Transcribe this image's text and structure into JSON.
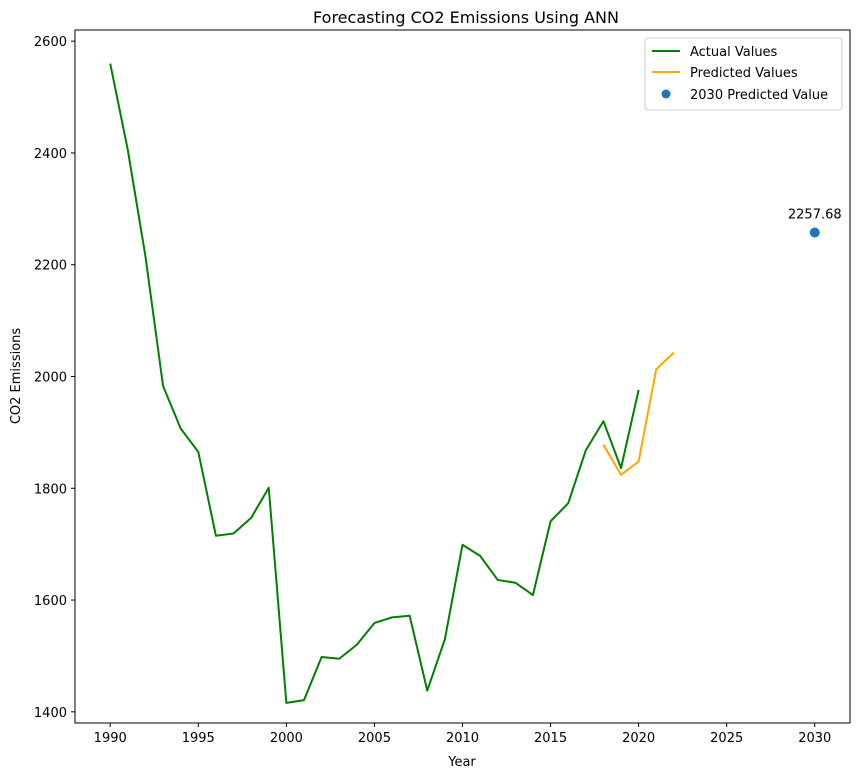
{
  "chart_data": {
    "type": "line",
    "title": "Forecasting CO2 Emissions Using ANN",
    "xlabel": "Year",
    "ylabel": "CO2 Emissions",
    "xlim": [
      1988,
      2032
    ],
    "ylim": [
      1380,
      2620
    ],
    "xticks": [
      1990,
      1995,
      2000,
      2005,
      2010,
      2015,
      2020,
      2025,
      2030
    ],
    "yticks": [
      1400,
      1600,
      1800,
      2000,
      2200,
      2400,
      2600
    ],
    "grid": false,
    "legend_position": "top-right",
    "series": [
      {
        "name": "Actual Values",
        "color": "#008000",
        "kind": "line",
        "x": [
          1990,
          1991,
          1992,
          1993,
          1994,
          1995,
          1996,
          1997,
          1998,
          1999,
          2000,
          2001,
          2002,
          2003,
          2004,
          2005,
          2006,
          2007,
          2008,
          2009,
          2010,
          2011,
          2012,
          2013,
          2014,
          2015,
          2016,
          2017,
          2018,
          2019,
          2020
        ],
        "values": [
          2560,
          2405,
          2215,
          1983,
          1907,
          1865,
          1715,
          1719,
          1747,
          1801,
          1416,
          1421,
          1498,
          1495,
          1520,
          1559,
          1569,
          1572,
          1438,
          1530,
          1699,
          1679,
          1636,
          1631,
          1609,
          1741,
          1773,
          1868,
          1920,
          1836,
          1976
        ]
      },
      {
        "name": "Predicted Values",
        "color": "#FFA500",
        "kind": "line",
        "x": [
          2018,
          2019,
          2020,
          2021,
          2022
        ],
        "values": [
          1878,
          1824,
          1848,
          2013,
          2043
        ]
      },
      {
        "name": "2030 Predicted Value",
        "color": "#1f77b4",
        "kind": "scatter",
        "x": [
          2030
        ],
        "values": [
          2257.68
        ]
      }
    ],
    "annotations": [
      {
        "text": "2257.68",
        "x": 2030,
        "y": 2257.68
      }
    ]
  }
}
